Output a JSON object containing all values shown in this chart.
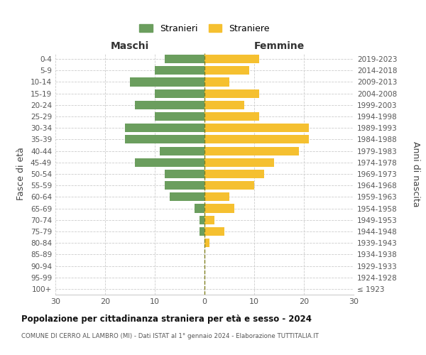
{
  "age_groups": [
    "100+",
    "95-99",
    "90-94",
    "85-89",
    "80-84",
    "75-79",
    "70-74",
    "65-69",
    "60-64",
    "55-59",
    "50-54",
    "45-49",
    "40-44",
    "35-39",
    "30-34",
    "25-29",
    "20-24",
    "15-19",
    "10-14",
    "5-9",
    "0-4"
  ],
  "birth_years": [
    "≤ 1923",
    "1924-1928",
    "1929-1933",
    "1934-1938",
    "1939-1943",
    "1944-1948",
    "1949-1953",
    "1954-1958",
    "1959-1963",
    "1964-1968",
    "1969-1973",
    "1974-1978",
    "1979-1983",
    "1984-1988",
    "1989-1993",
    "1994-1998",
    "1999-2003",
    "2004-2008",
    "2009-2013",
    "2014-2018",
    "2019-2023"
  ],
  "males": [
    0,
    0,
    0,
    0,
    0,
    1,
    1,
    2,
    7,
    8,
    8,
    14,
    9,
    16,
    16,
    10,
    14,
    10,
    15,
    10,
    8
  ],
  "females": [
    0,
    0,
    0,
    0,
    1,
    4,
    2,
    6,
    5,
    10,
    12,
    14,
    19,
    21,
    21,
    11,
    8,
    11,
    5,
    9,
    11
  ],
  "male_color": "#6b9e5e",
  "female_color": "#f5c030",
  "background_color": "#ffffff",
  "grid_color": "#cccccc",
  "title": "Popolazione per cittadinanza straniera per età e sesso - 2024",
  "subtitle": "COMUNE DI CERRO AL LAMBRO (MI) - Dati ISTAT al 1° gennaio 2024 - Elaborazione TUTTITALIA.IT",
  "ylabel_left": "Fasce di età",
  "ylabel_right": "Anni di nascita",
  "label_maschi": "Maschi",
  "label_femmine": "Femmine",
  "legend_male": "Stranieri",
  "legend_female": "Straniere",
  "xlim": 30,
  "bar_height": 0.75
}
